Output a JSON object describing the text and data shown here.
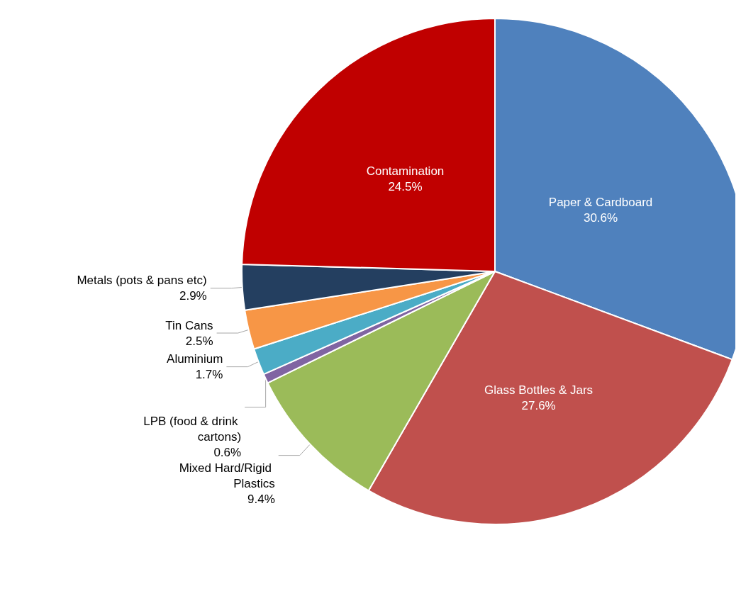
{
  "chart_data": {
    "type": "pie",
    "categories": [
      "Paper & Cardboard",
      "Glass Bottles & Jars",
      "Mixed Hard/Rigid Plastics",
      "LPB (food & drink cartons)",
      "Aluminium",
      "Tin Cans",
      "Metals (pots & pans etc)",
      "Contamination"
    ],
    "values": [
      30.6,
      27.6,
      9.4,
      0.6,
      1.7,
      2.5,
      2.9,
      24.5
    ],
    "colors": [
      "#4f81bd",
      "#c0504d",
      "#9bbb59",
      "#8064a2",
      "#4bacc6",
      "#f79646",
      "#243f60",
      "#c00000"
    ],
    "value_labels": [
      "30.6%",
      "27.6%",
      "9.4%",
      "0.6%",
      "1.7%",
      "2.5%",
      "2.9%",
      "24.5%"
    ],
    "legend": false
  }
}
